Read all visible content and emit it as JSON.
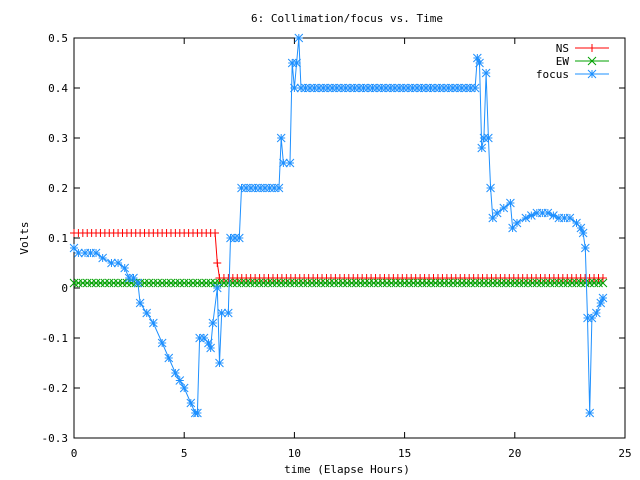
{
  "chart_data": {
    "type": "line",
    "title": "6: Collimation/focus vs. Time",
    "xlabel": "time (Elapse Hours)",
    "ylabel": "Volts",
    "xlim": [
      0,
      25
    ],
    "ylim": [
      -0.3,
      0.5
    ],
    "x_ticks": [
      "0",
      "5",
      "10",
      "15",
      "20",
      "25"
    ],
    "y_ticks": [
      "-0.3",
      "-0.2",
      "-0.1",
      "0",
      "0.1",
      "0.2",
      "0.3",
      "0.4",
      "0.5"
    ],
    "grid": false,
    "legend_position": "top-right",
    "series": [
      {
        "name": "NS",
        "color": "#ff0000",
        "marker": "plus",
        "points": [
          [
            0,
            0.11
          ],
          [
            6.4,
            0.11
          ],
          [
            6.5,
            0.05
          ],
          [
            6.6,
            0.02
          ],
          [
            24,
            0.02
          ]
        ]
      },
      {
        "name": "EW",
        "color": "#00a000",
        "marker": "cross",
        "points": [
          [
            0,
            0.01
          ],
          [
            24,
            0.01
          ]
        ]
      },
      {
        "name": "focus",
        "color": "#1e90ff",
        "marker": "star",
        "points": [
          [
            0,
            0.08
          ],
          [
            0.2,
            0.07
          ],
          [
            0.5,
            0.07
          ],
          [
            1.0,
            0.07
          ],
          [
            1.3,
            0.06
          ],
          [
            1.7,
            0.05
          ],
          [
            2.0,
            0.05
          ],
          [
            2.3,
            0.04
          ],
          [
            2.5,
            0.02
          ],
          [
            2.7,
            0.02
          ],
          [
            2.9,
            0.01
          ],
          [
            3.0,
            -0.03
          ],
          [
            3.3,
            -0.05
          ],
          [
            3.6,
            -0.07
          ],
          [
            4.0,
            -0.11
          ],
          [
            4.3,
            -0.14
          ],
          [
            4.6,
            -0.17
          ],
          [
            5.0,
            -0.2
          ],
          [
            5.3,
            -0.23
          ],
          [
            5.5,
            -0.25
          ],
          [
            5.6,
            -0.25
          ],
          [
            5.7,
            -0.1
          ],
          [
            5.9,
            -0.1
          ],
          [
            6.1,
            -0.11
          ],
          [
            6.2,
            -0.12
          ],
          [
            6.3,
            -0.07
          ],
          [
            6.5,
            0.0
          ],
          [
            6.6,
            -0.15
          ],
          [
            6.7,
            -0.05
          ],
          [
            7.0,
            -0.05
          ],
          [
            7.1,
            0.1
          ],
          [
            7.5,
            0.1
          ],
          [
            7.6,
            0.2
          ],
          [
            9.3,
            0.2
          ],
          [
            9.4,
            0.3
          ],
          [
            9.5,
            0.25
          ],
          [
            9.8,
            0.25
          ],
          [
            9.9,
            0.45
          ],
          [
            10.0,
            0.4
          ],
          [
            10.1,
            0.45
          ],
          [
            10.2,
            0.5
          ],
          [
            10.3,
            0.4
          ],
          [
            18.2,
            0.4
          ],
          [
            18.3,
            0.46
          ],
          [
            18.4,
            0.45
          ],
          [
            18.5,
            0.28
          ],
          [
            18.6,
            0.3
          ],
          [
            18.7,
            0.43
          ],
          [
            18.8,
            0.3
          ],
          [
            18.9,
            0.2
          ],
          [
            19.0,
            0.14
          ],
          [
            19.2,
            0.15
          ],
          [
            19.5,
            0.16
          ],
          [
            19.8,
            0.17
          ],
          [
            19.9,
            0.12
          ],
          [
            20.1,
            0.13
          ],
          [
            20.5,
            0.14
          ],
          [
            21.0,
            0.15
          ],
          [
            21.5,
            0.15
          ],
          [
            22.0,
            0.14
          ],
          [
            22.5,
            0.14
          ],
          [
            22.8,
            0.13
          ],
          [
            23.0,
            0.12
          ],
          [
            23.1,
            0.11
          ],
          [
            23.2,
            0.08
          ],
          [
            23.3,
            -0.06
          ],
          [
            23.4,
            -0.25
          ],
          [
            23.5,
            -0.06
          ],
          [
            23.7,
            -0.05
          ],
          [
            23.9,
            -0.03
          ],
          [
            24.0,
            -0.02
          ]
        ]
      }
    ]
  }
}
